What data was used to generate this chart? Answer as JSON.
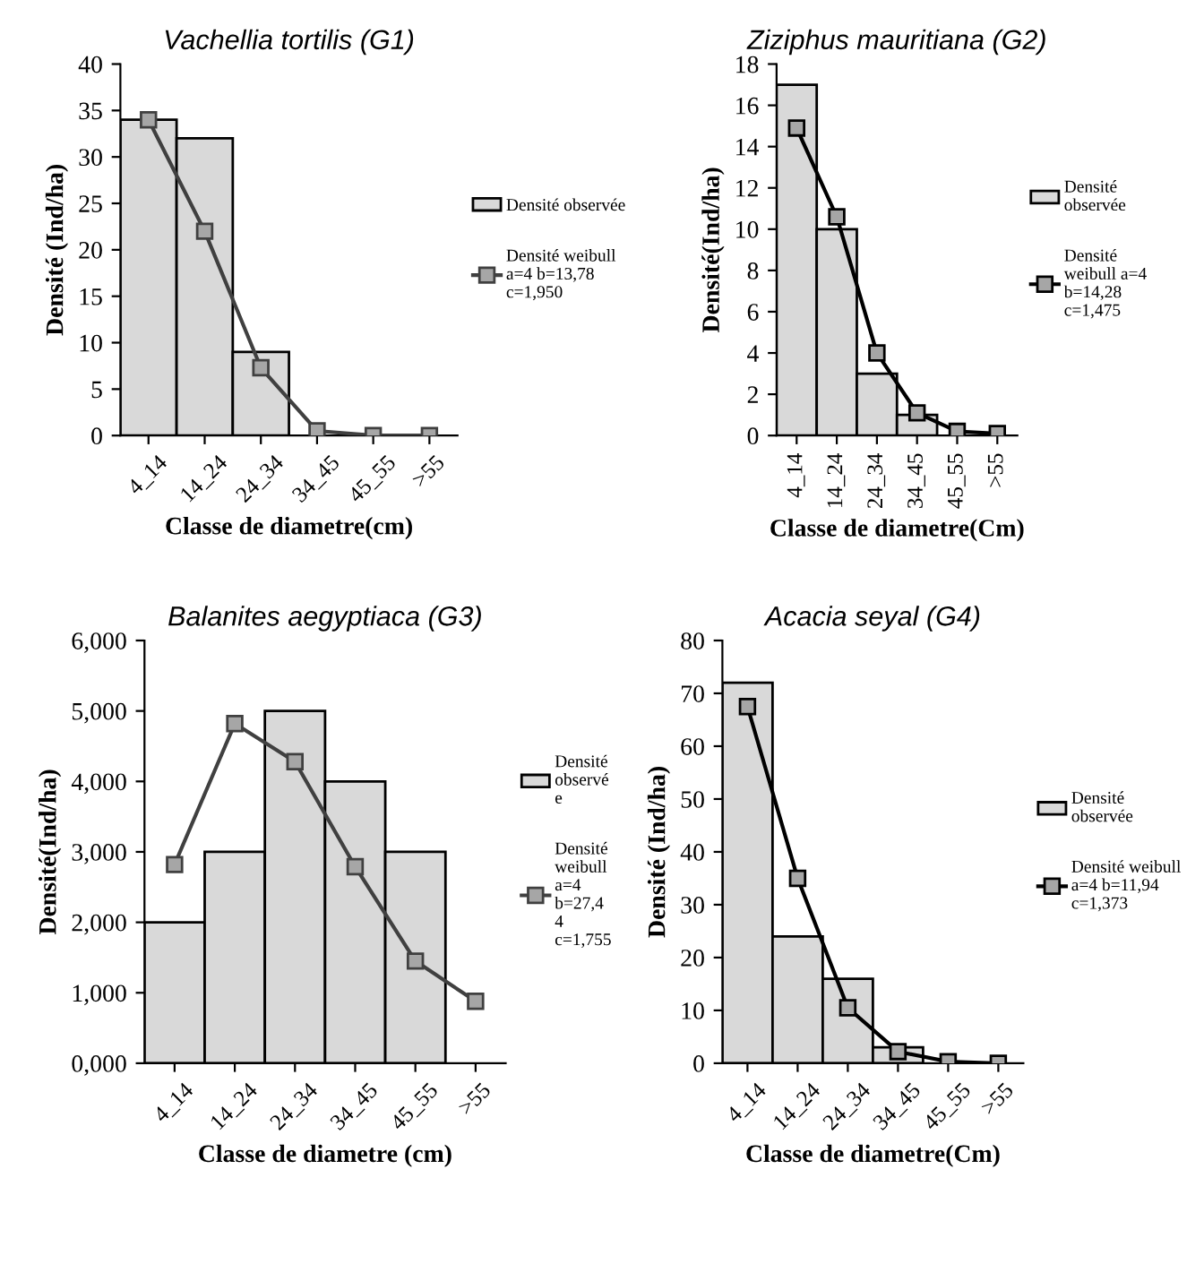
{
  "chart_data": [
    {
      "type": "bar",
      "title": "Vachellia tortilis (G1)",
      "xlabel": "Classe de diametre(cm)",
      "ylabel": "Densité (Ind/ha)",
      "categories": [
        "4_14",
        "14_24",
        "24_34",
        "34_45",
        "45_55",
        ">55"
      ],
      "ylim": [
        0,
        40
      ],
      "yticks": [
        0,
        5,
        10,
        15,
        20,
        25,
        30,
        35,
        40
      ],
      "legend": "right",
      "grid": false,
      "series": [
        {
          "name": "Densité observée",
          "color": "#d9d9d9",
          "values": [
            34,
            32,
            9,
            null,
            null,
            null
          ]
        },
        {
          "name": "Densité weibull\na=4 b=13,78\nc=1,950",
          "type": "line",
          "color": "#404040",
          "marker": "square",
          "values": [
            34,
            22,
            7.3,
            0.5,
            0,
            0
          ]
        }
      ]
    },
    {
      "type": "bar",
      "title": "Ziziphus mauritiana (G2)",
      "xlabel": "Classe de diametre(Cm)",
      "ylabel": "Densité(Ind/ha)",
      "categories": [
        "4_14",
        "14_24",
        "24_34",
        "34_45",
        "45_55",
        ">55"
      ],
      "ylim": [
        0,
        18
      ],
      "yticks": [
        0,
        2,
        4,
        6,
        8,
        10,
        12,
        14,
        16,
        18
      ],
      "legend": "right",
      "grid": false,
      "series": [
        {
          "name": "Densité\nobservée",
          "color": "#d9d9d9",
          "values": [
            17,
            10,
            3,
            1,
            null,
            null
          ]
        },
        {
          "name": "Densité\nweibull a=4\nb=14,28\nc=1,475",
          "type": "line",
          "color": "#000000",
          "marker": "square",
          "values": [
            14.9,
            10.6,
            4,
            1.1,
            0.2,
            0.1
          ]
        }
      ]
    },
    {
      "type": "bar",
      "title": "Balanites aegyptiaca (G3)",
      "xlabel": "Classe de diametre (cm)",
      "ylabel": "Densité(Ind/ha)",
      "categories": [
        "4_14",
        "14_24",
        "24_34",
        "34_45",
        "45_55",
        ">55"
      ],
      "ylim": [
        0,
        6
      ],
      "yticks": [
        {
          "value": 0,
          "label": "0,000"
        },
        {
          "value": 1,
          "label": "1,000"
        },
        {
          "value": 2,
          "label": "2,000"
        },
        {
          "value": 3,
          "label": "3,000"
        },
        {
          "value": 4,
          "label": "4,000"
        },
        {
          "value": 5,
          "label": "5,000"
        },
        {
          "value": 6,
          "label": "6,000"
        }
      ],
      "legend": "right",
      "grid": false,
      "series": [
        {
          "name": "Densité\nobservé\ne",
          "color": "#d9d9d9",
          "values": [
            2,
            3,
            5,
            4,
            3,
            null
          ]
        },
        {
          "name": "Densité\nweibull\na=4\nb=27,4\n4\nc=1,755",
          "type": "line",
          "color": "#404040",
          "marker": "square",
          "values": [
            2.82,
            4.82,
            4.28,
            2.79,
            1.45,
            0.88
          ]
        }
      ]
    },
    {
      "type": "bar",
      "title": "Acacia seyal (G4)",
      "xlabel": "Classe de diametre(Cm)",
      "ylabel": "Densité (Ind/ha)",
      "categories": [
        "4_14",
        "14_24",
        "24_34",
        "34_45",
        "45_55",
        ">55"
      ],
      "ylim": [
        0,
        80
      ],
      "yticks": [
        0,
        10,
        20,
        30,
        40,
        50,
        60,
        70,
        80
      ],
      "legend": "right",
      "grid": false,
      "series": [
        {
          "name": "Densité\nobservée",
          "color": "#d9d9d9",
          "values": [
            72,
            24,
            16,
            3,
            null,
            null
          ]
        },
        {
          "name": "Densité weibull\na=4 b=11,94\nc=1,373",
          "type": "line",
          "color": "#000000",
          "marker": "square",
          "values": [
            67.5,
            35,
            10.5,
            2.2,
            0.3,
            0
          ]
        }
      ]
    }
  ]
}
